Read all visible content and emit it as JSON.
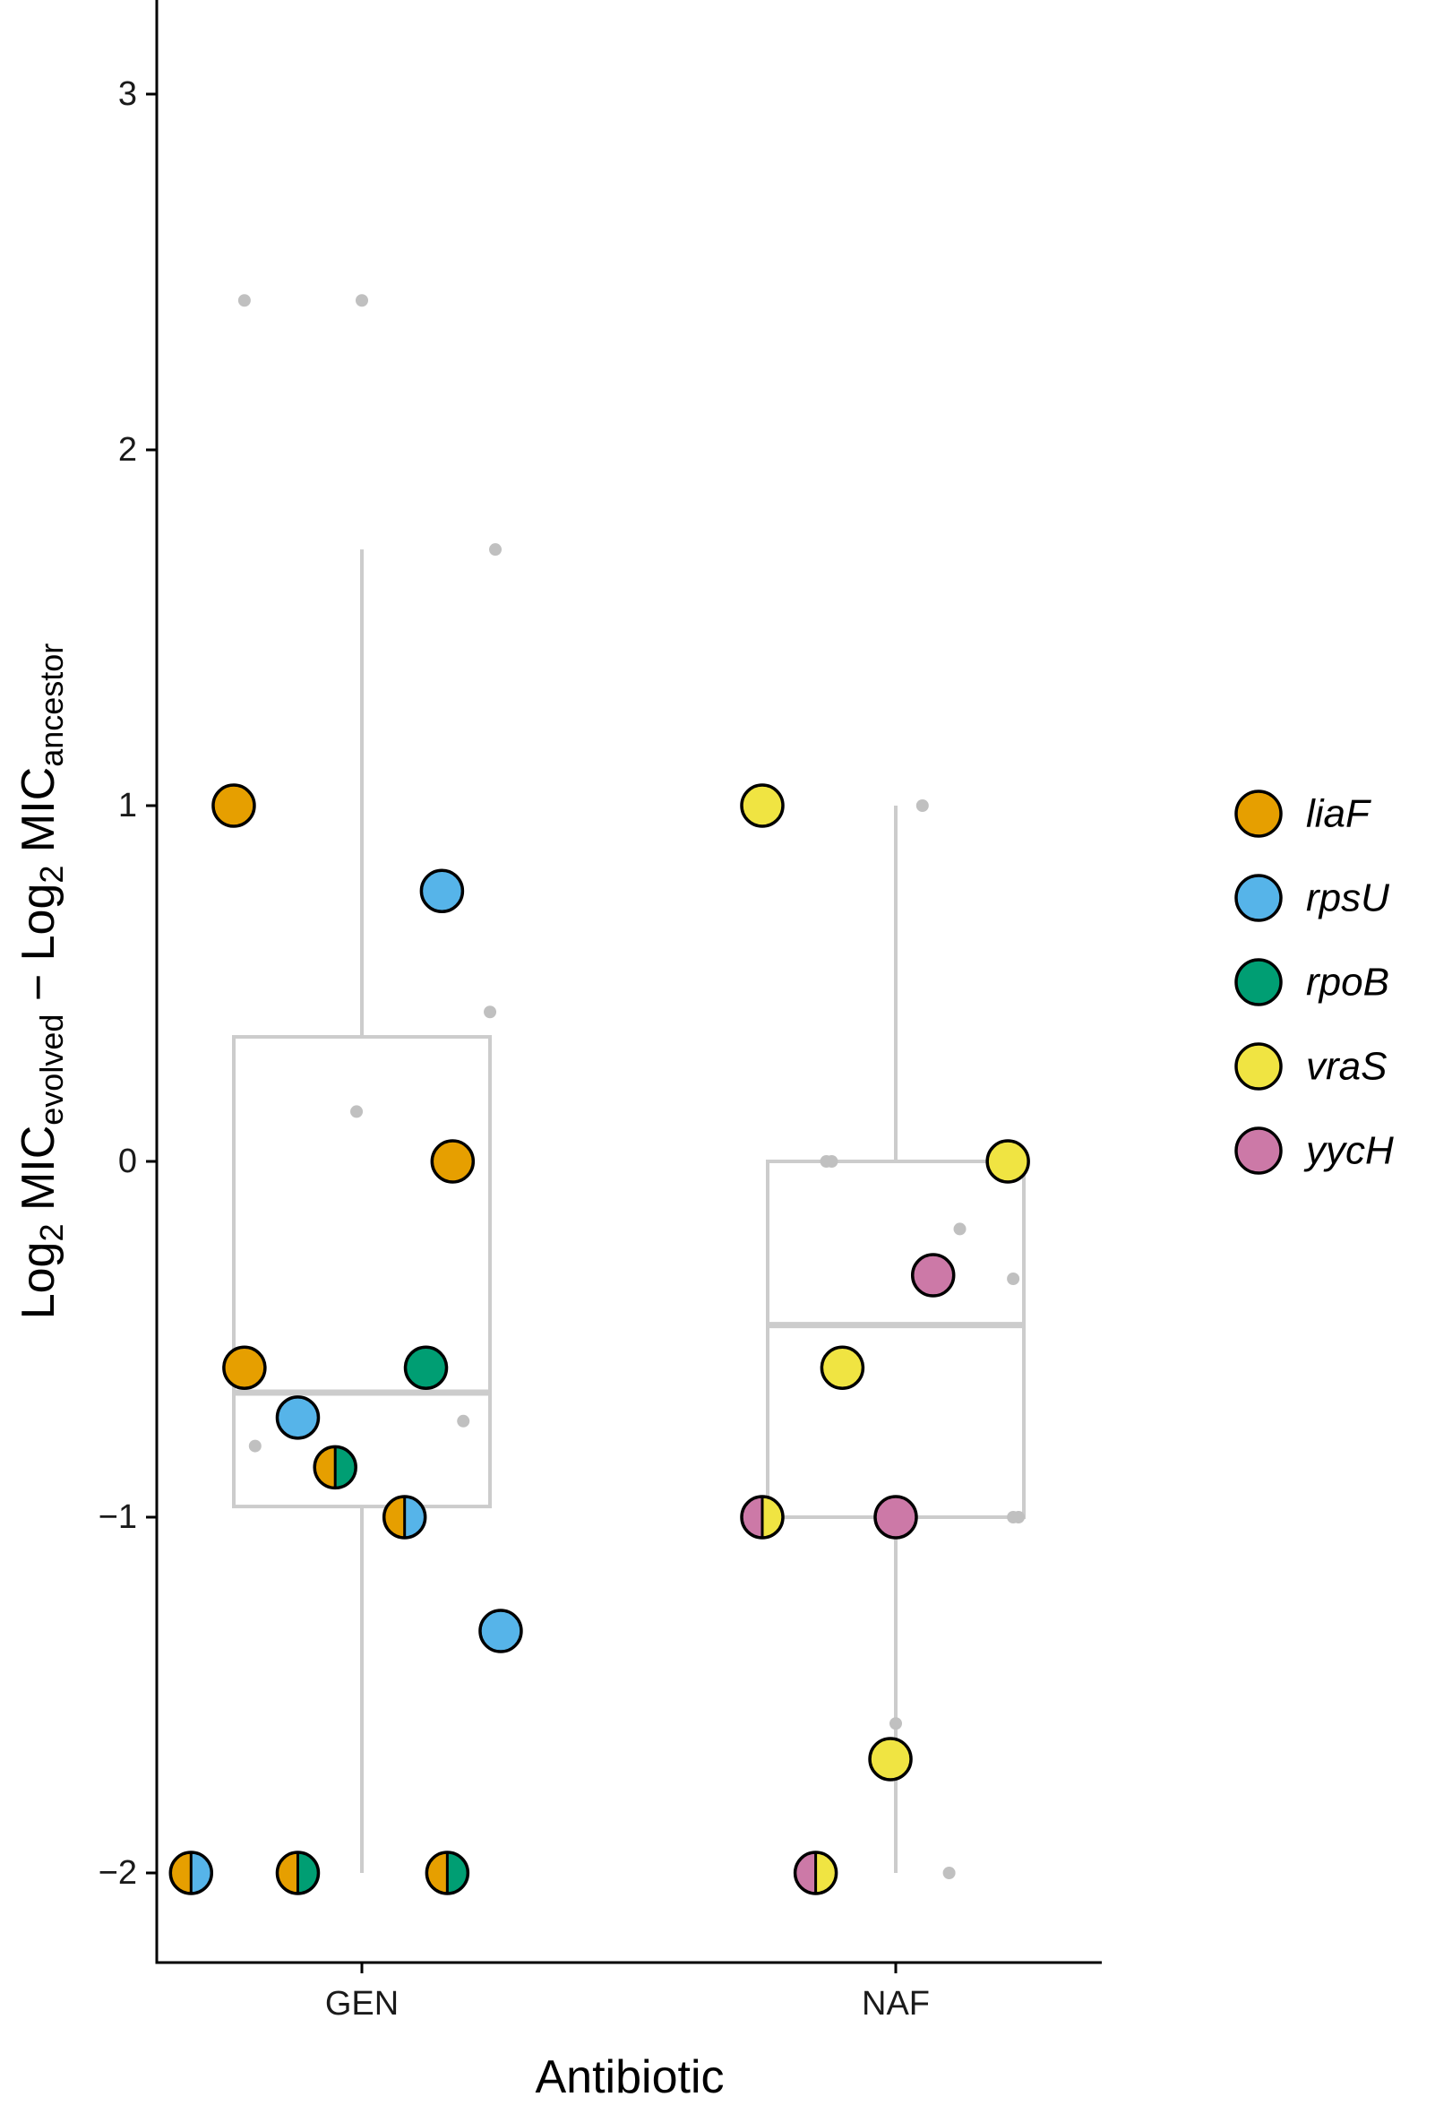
{
  "chart_data": {
    "type": "box",
    "xlabel": "Antibiotic",
    "ylabel": {
      "parts": [
        {
          "text": "Log",
          "sub": false
        },
        {
          "text": "2",
          "sub": true
        },
        {
          "text": " MIC",
          "sub": false
        },
        {
          "text": "evolved",
          "sub": true
        },
        {
          "text": " − Log",
          "sub": false
        },
        {
          "text": "2",
          "sub": true
        },
        {
          "text": " MIC",
          "sub": false
        },
        {
          "text": "ancestor",
          "sub": true
        }
      ]
    },
    "categories": [
      "GEN",
      "NAF"
    ],
    "y_ticks": [
      -2,
      -1,
      0,
      1,
      2,
      3
    ],
    "y_tick_labels": [
      "−2",
      "−1",
      "0",
      "1",
      "2",
      "3"
    ],
    "ylim": [
      -2.25,
      3.25
    ],
    "grid": false,
    "legend_position": "right",
    "genes": [
      {
        "name": "liaF",
        "color": "#E69F00"
      },
      {
        "name": "rpsU",
        "color": "#56B4E9"
      },
      {
        "name": "rpoB",
        "color": "#009E73"
      },
      {
        "name": "vraS",
        "color": "#F0E442"
      },
      {
        "name": "yycH",
        "color": "#CC79A7"
      }
    ],
    "boxes": [
      {
        "category": "GEN",
        "whisker_low": -2.0,
        "q1": -0.97,
        "median": -0.65,
        "q3": 0.35,
        "whisker_high": 1.72
      },
      {
        "category": "NAF",
        "whisker_low": -2.0,
        "q1": -1.0,
        "median": -0.46,
        "q3": 0.0,
        "whisker_high": 1.0
      }
    ],
    "background_points": [
      {
        "category": "GEN",
        "jitter": -0.22,
        "y": 2.42
      },
      {
        "category": "GEN",
        "jitter": 0.0,
        "y": 2.42
      },
      {
        "category": "GEN",
        "jitter": 0.25,
        "y": 1.72
      },
      {
        "category": "GEN",
        "jitter": 0.24,
        "y": 0.42
      },
      {
        "category": "GEN",
        "jitter": -0.01,
        "y": 0.14
      },
      {
        "category": "GEN",
        "jitter": 0.19,
        "y": -0.73
      },
      {
        "category": "GEN",
        "jitter": -0.2,
        "y": -0.8
      },
      {
        "category": "NAF",
        "jitter": 0.05,
        "y": 1.0
      },
      {
        "category": "NAF",
        "jitter": -0.13,
        "y": 0.0
      },
      {
        "category": "NAF",
        "jitter": -0.12,
        "y": 0.0
      },
      {
        "category": "NAF",
        "jitter": 0.12,
        "y": -0.19
      },
      {
        "category": "NAF",
        "jitter": 0.22,
        "y": -0.33
      },
      {
        "category": "NAF",
        "jitter": 0.22,
        "y": -1.0
      },
      {
        "category": "NAF",
        "jitter": 0.23,
        "y": -1.0
      },
      {
        "category": "NAF",
        "jitter": 0.0,
        "y": -1.58
      },
      {
        "category": "NAF",
        "jitter": 0.1,
        "y": -2.0
      }
    ],
    "mutant_points": [
      {
        "category": "GEN",
        "jitter": -0.24,
        "y": 1.0,
        "genes": [
          "liaF"
        ]
      },
      {
        "category": "GEN",
        "jitter": 0.15,
        "y": 0.76,
        "genes": [
          "rpsU"
        ]
      },
      {
        "category": "GEN",
        "jitter": 0.17,
        "y": 0.0,
        "genes": [
          "liaF"
        ]
      },
      {
        "category": "GEN",
        "jitter": -0.22,
        "y": -0.58,
        "genes": [
          "liaF"
        ]
      },
      {
        "category": "GEN",
        "jitter": 0.12,
        "y": -0.58,
        "genes": [
          "rpoB"
        ]
      },
      {
        "category": "GEN",
        "jitter": -0.12,
        "y": -0.72,
        "genes": [
          "rpsU"
        ]
      },
      {
        "category": "GEN",
        "jitter": -0.05,
        "y": -0.86,
        "genes": [
          "liaF",
          "rpoB"
        ]
      },
      {
        "category": "GEN",
        "jitter": 0.08,
        "y": -1.0,
        "genes": [
          "liaF",
          "rpsU"
        ]
      },
      {
        "category": "GEN",
        "jitter": 0.26,
        "y": -1.32,
        "genes": [
          "rpsU"
        ]
      },
      {
        "category": "GEN",
        "jitter": -0.32,
        "y": -2.0,
        "genes": [
          "liaF",
          "rpsU"
        ]
      },
      {
        "category": "GEN",
        "jitter": -0.12,
        "y": -2.0,
        "genes": [
          "liaF",
          "rpoB"
        ]
      },
      {
        "category": "GEN",
        "jitter": 0.16,
        "y": -2.0,
        "genes": [
          "liaF",
          "rpoB"
        ]
      },
      {
        "category": "NAF",
        "jitter": -0.25,
        "y": 1.0,
        "genes": [
          "vraS"
        ]
      },
      {
        "category": "NAF",
        "jitter": 0.21,
        "y": 0.0,
        "genes": [
          "vraS"
        ]
      },
      {
        "category": "NAF",
        "jitter": 0.07,
        "y": -0.32,
        "genes": [
          "yycH"
        ]
      },
      {
        "category": "NAF",
        "jitter": -0.1,
        "y": -0.58,
        "genes": [
          "vraS"
        ]
      },
      {
        "category": "NAF",
        "jitter": -0.25,
        "y": -1.0,
        "genes": [
          "yycH",
          "vraS"
        ]
      },
      {
        "category": "NAF",
        "jitter": 0.0,
        "y": -1.0,
        "genes": [
          "yycH"
        ]
      },
      {
        "category": "NAF",
        "jitter": -0.01,
        "y": -1.68,
        "genes": [
          "vraS"
        ]
      },
      {
        "category": "NAF",
        "jitter": -0.15,
        "y": -2.0,
        "genes": [
          "yycH",
          "vraS"
        ]
      }
    ]
  }
}
